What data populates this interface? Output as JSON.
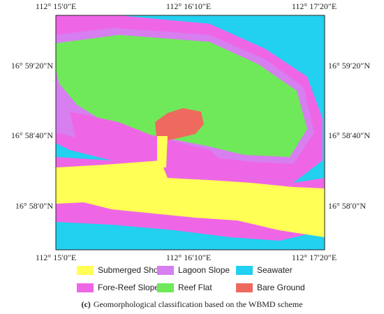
{
  "map": {
    "top_labels": [
      "112° 15′0″E",
      "112° 16′10″E",
      "112° 17′20″E"
    ],
    "bottom_labels": [
      "112° 15′0″E",
      "112° 16′10″E",
      "112° 17′20″E"
    ],
    "left_labels": [
      "16° 59′20″N",
      "16° 58′40″N",
      "16° 58′0″N"
    ],
    "right_labels": [
      "16° 59′20″N",
      "16° 58′40″N",
      "16° 58′0″N"
    ]
  },
  "legend": [
    {
      "label": "Submerged Shoal",
      "color": "#ffff55"
    },
    {
      "label": "Lagoon Slope",
      "color": "#d77ef0"
    },
    {
      "label": "Seawater",
      "color": "#22d0f0"
    },
    {
      "label": "Fore-Reef Slope",
      "color": "#ee66e6"
    },
    {
      "label": "Reef Flat",
      "color": "#6fe95a"
    },
    {
      "label": "Bare Ground",
      "color": "#ee6a5e"
    }
  ],
  "caption": {
    "marker": "(c)",
    "text": "Geomorphological classification based on the WBMD scheme"
  }
}
